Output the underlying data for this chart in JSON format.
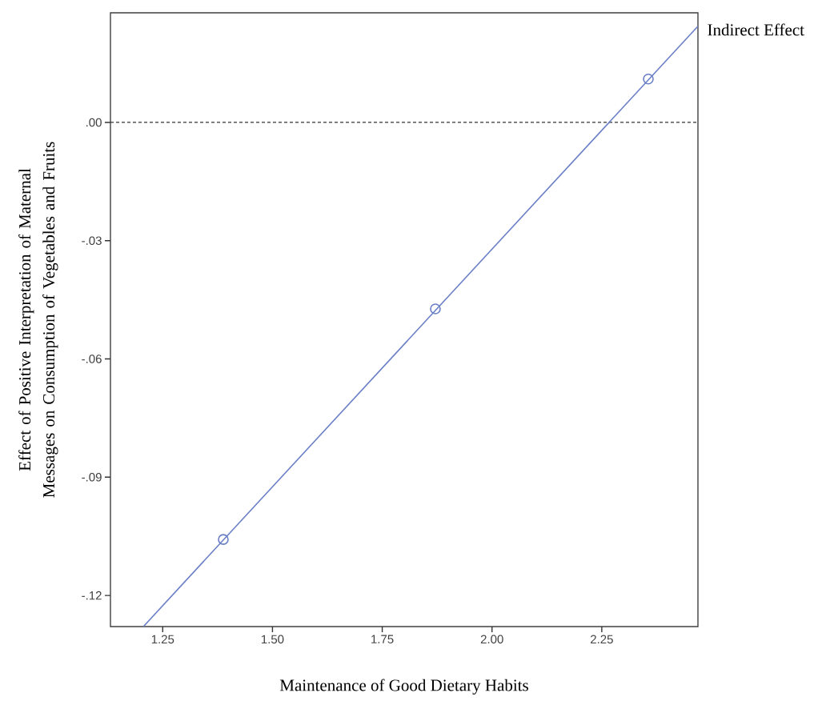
{
  "chart_data": {
    "type": "line",
    "xlabel": "Maintenance of Good Dietary Habits",
    "ylabel": "Effect of Positive Interpretation of Maternal Messages on Consumption of Vegetables and Fruits",
    "annotations": [
      "Indirect Effect"
    ],
    "series": [
      {
        "color": "#6a7fc6",
        "x": [
          1.206,
          2.469
        ],
        "values": [
          -0.1279,
          0.0244
        ],
        "marker": "none",
        "line_style": "solid"
      },
      {
        "type": "scatter",
        "color": "#6a7fc6",
        "x": [
          1.388,
          1.871,
          2.356
        ],
        "values": [
          -0.1058,
          -0.0473,
          0.011
        ],
        "marker": "circle"
      }
    ],
    "xlim": [
      1.131,
      2.469
    ],
    "ylim": [
      -0.1279,
      0.0278
    ],
    "xticks": [
      1.25,
      {
        "value": 1.5,
        "label": "1.50"
      },
      1.75,
      {
        "value": 2,
        "label": "2.00"
      },
      2.25
    ],
    "yticks": [
      {
        "value": 0,
        "label": ".00"
      },
      {
        "value": -0.03,
        "label": "-.03"
      },
      {
        "value": -0.06,
        "label": "-.06"
      },
      {
        "value": -0.09,
        "label": "-.09"
      },
      {
        "value": -0.12,
        "label": "-.12"
      }
    ],
    "ref_lines": [
      {
        "axis": "y",
        "value": 0,
        "color": "#333333",
        "line_style": "dashed"
      }
    ],
    "grid": false
  }
}
